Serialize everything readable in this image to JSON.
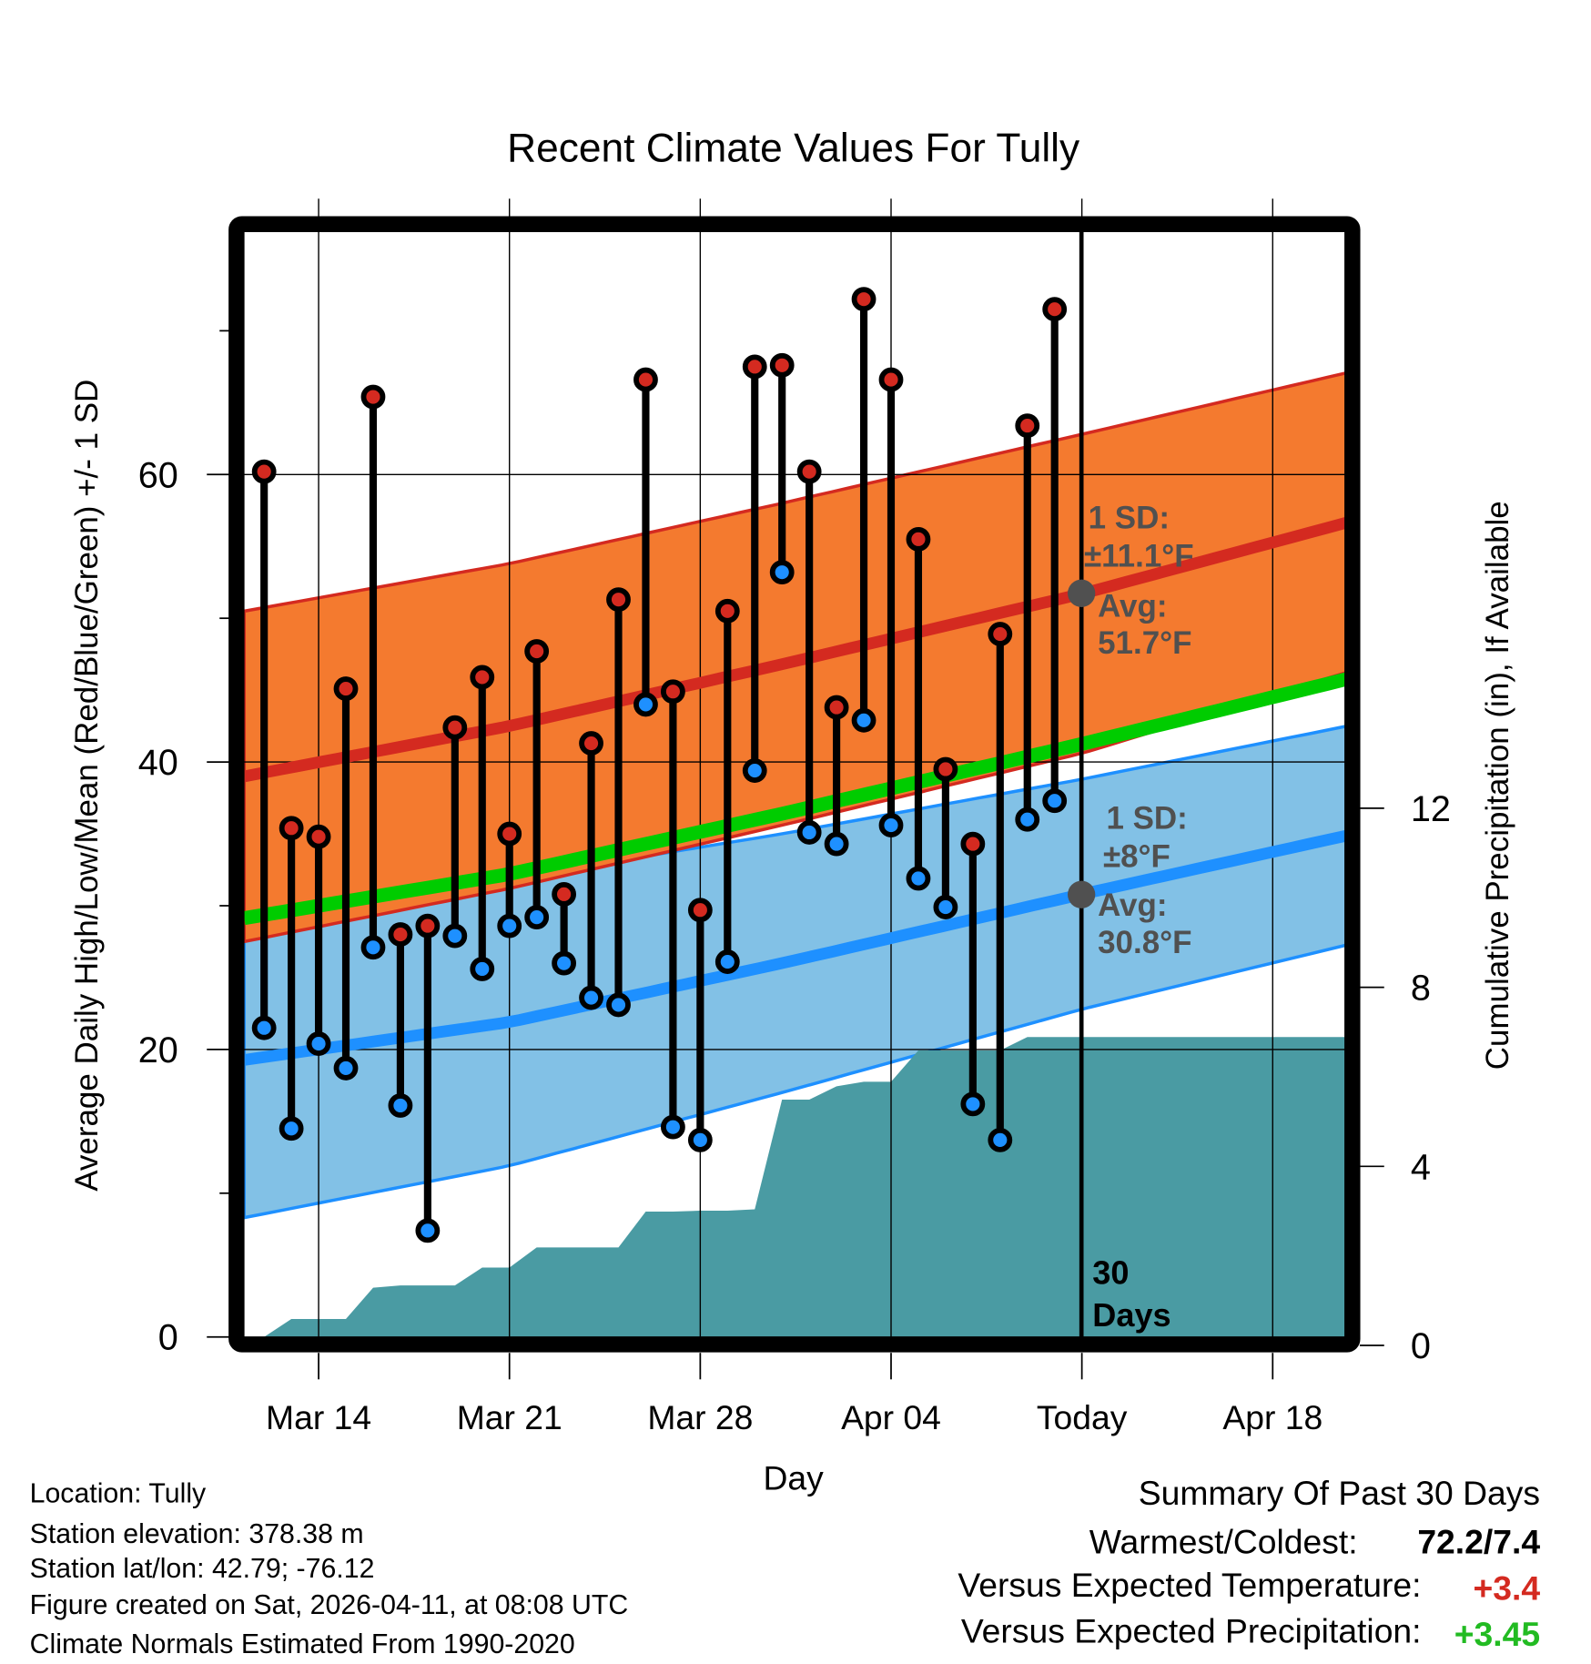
{
  "chart_data": {
    "type": "line",
    "title": "Recent Climate Values For Tully",
    "xlabel": "Day",
    "ylabel": "Average Daily High/Low/Mean (Red/Blue/Green) +/- 1 SD",
    "y2label": "Cumulative Precipitation (in), If Available",
    "ylim": [
      0,
      77
    ],
    "y2lim": [
      0,
      23.6
    ],
    "yticks": [
      0,
      20,
      40,
      60
    ],
    "y2ticks": [
      0,
      4,
      8,
      12
    ],
    "xtick_labels": [
      "Mar 14",
      "Mar 21",
      "Mar 28",
      "Apr 04",
      "Today",
      "Apr 18"
    ],
    "xtick_days": [
      2,
      9,
      16,
      23,
      30,
      37
    ],
    "grid": true,
    "colors": {
      "high": "#D42A20",
      "low": "#1E90FF",
      "mean": "#00CC00",
      "high_band": "#F47A2F",
      "low_band": "#82C1E6",
      "precip": "#4A9BA3",
      "annotation": "#505050"
    },
    "observed": {
      "dates": [
        "Mar 12",
        "Mar 13",
        "Mar 14",
        "Mar 15",
        "Mar 16",
        "Mar 17",
        "Mar 18",
        "Mar 19",
        "Mar 20",
        "Mar 21",
        "Mar 22",
        "Mar 23",
        "Mar 24",
        "Mar 25",
        "Mar 26",
        "Mar 27",
        "Mar 28",
        "Mar 29",
        "Mar 30",
        "Mar 31",
        "Apr 01",
        "Apr 02",
        "Apr 03",
        "Apr 04",
        "Apr 05",
        "Apr 06",
        "Apr 07",
        "Apr 08",
        "Apr 09",
        "Apr 10"
      ],
      "high": [
        60.2,
        35.4,
        34.8,
        45.1,
        65.4,
        28.0,
        28.6,
        42.4,
        45.9,
        35.0,
        47.7,
        30.8,
        41.3,
        51.3,
        66.6,
        44.9,
        29.7,
        50.5,
        67.5,
        67.6,
        60.2,
        43.8,
        72.2,
        66.6,
        55.5,
        39.5,
        34.3,
        48.9,
        63.4,
        71.5
      ],
      "low": [
        21.5,
        14.5,
        20.4,
        18.7,
        27.1,
        16.1,
        7.4,
        27.9,
        25.6,
        28.6,
        29.2,
        26.0,
        23.6,
        23.1,
        44.0,
        14.6,
        13.7,
        26.1,
        39.4,
        53.2,
        35.1,
        34.3,
        42.9,
        35.6,
        31.9,
        29.9,
        16.2,
        13.7,
        36.0,
        37.3
      ],
      "cumulative_precip": [
        0.0,
        0.4,
        0.4,
        0.4,
        1.1,
        1.15,
        1.15,
        1.15,
        1.55,
        1.55,
        2.0,
        2.0,
        2.0,
        2.0,
        2.8,
        2.8,
        2.82,
        2.82,
        2.85,
        5.3,
        5.3,
        5.6,
        5.7,
        5.7,
        6.4,
        6.4,
        6.4,
        6.4,
        6.7,
        6.7
      ]
    },
    "normals": {
      "days": [
        -1,
        9,
        19,
        30,
        40
      ],
      "high_mean": [
        38.9,
        42.5,
        46.8,
        51.7,
        56.8
      ],
      "high_sd": [
        11.5,
        11.3,
        11.2,
        11.1,
        10.4
      ],
      "low_mean": [
        19.2,
        21.9,
        26.0,
        30.8,
        35.0
      ],
      "low_sd": [
        11.0,
        10.0,
        9.0,
        8.0,
        7.6
      ]
    },
    "annotations": {
      "high_sd_label": "1 SD:",
      "high_sd_value": "±11.1°F",
      "high_avg_label": "Avg:",
      "high_avg_value": "51.7°F",
      "low_sd_label": "1 SD:",
      "low_sd_value": "±8°F",
      "low_avg_label": "Avg:",
      "low_avg_value": "30.8°F",
      "today_high_avg": 51.7,
      "today_low_avg": 30.8,
      "window_num": "30",
      "window_unit": "Days"
    }
  },
  "footer": {
    "location": "Location: Tully",
    "elevation": "Station elevation: 378.38 m",
    "latlon": "Station lat/lon: 42.79; -76.12",
    "created": "Figure created on Sat, 2026-04-11, at 08:08 UTC",
    "normals": "Climate Normals Estimated From 1990-2020"
  },
  "summary": {
    "title": "Summary Of Past 30 Days",
    "warmest_label": "Warmest/Coldest:",
    "warmest_value": "72.2/7.4",
    "temp_label": "Versus Expected Temperature:",
    "temp_value": "+3.4",
    "temp_color": "#D42A20",
    "precip_label": "Versus Expected Precipitation:",
    "precip_value": "+3.45",
    "precip_color": "#22BB22"
  }
}
